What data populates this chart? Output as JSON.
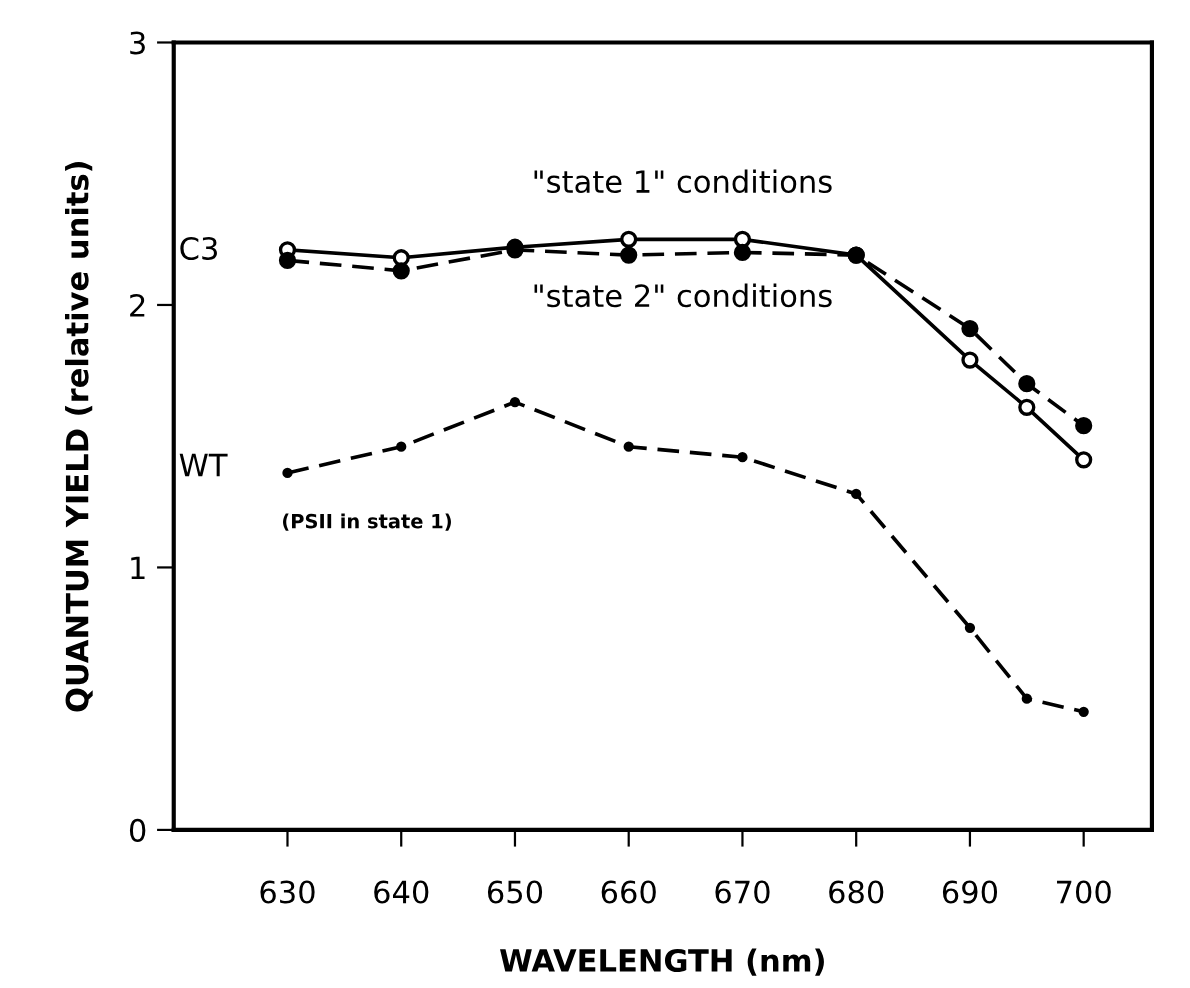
{
  "chart_data": {
    "type": "line",
    "xlabel": "WAVELENGTH (nm)",
    "ylabel": "QUANTUM YIELD (relative units)",
    "x": [
      630,
      640,
      650,
      660,
      670,
      680,
      690,
      695,
      700
    ],
    "xlim": [
      620,
      706
    ],
    "xticks": [
      630,
      640,
      650,
      660,
      670,
      680,
      690,
      700
    ],
    "ylim": [
      0,
      3
    ],
    "yticks": [
      0,
      1,
      2,
      3
    ],
    "grid": false,
    "legend": false,
    "series": [
      {
        "color": "#000000",
        "line_style": "solid",
        "marker": "circle",
        "values": [
          2.21,
          2.18,
          2.22,
          2.25,
          2.25,
          2.19,
          1.79,
          1.61,
          1.41
        ]
      },
      {
        "color": "#000000",
        "line_style": "dashed",
        "marker": "circle",
        "values": [
          2.17,
          2.13,
          2.21,
          2.19,
          2.2,
          2.19,
          1.91,
          1.7,
          1.54
        ]
      },
      {
        "color": "#000000",
        "line_style": "dashed",
        "marker": "circle",
        "values": [
          1.36,
          1.46,
          1.63,
          1.46,
          1.42,
          1.28,
          0.77,
          0.5,
          0.45
        ]
      }
    ],
    "annotations": [
      "C3",
      "\"state 1\" conditions",
      "\"state 2\" conditions",
      "WT",
      "(PSII in state 1)"
    ]
  }
}
